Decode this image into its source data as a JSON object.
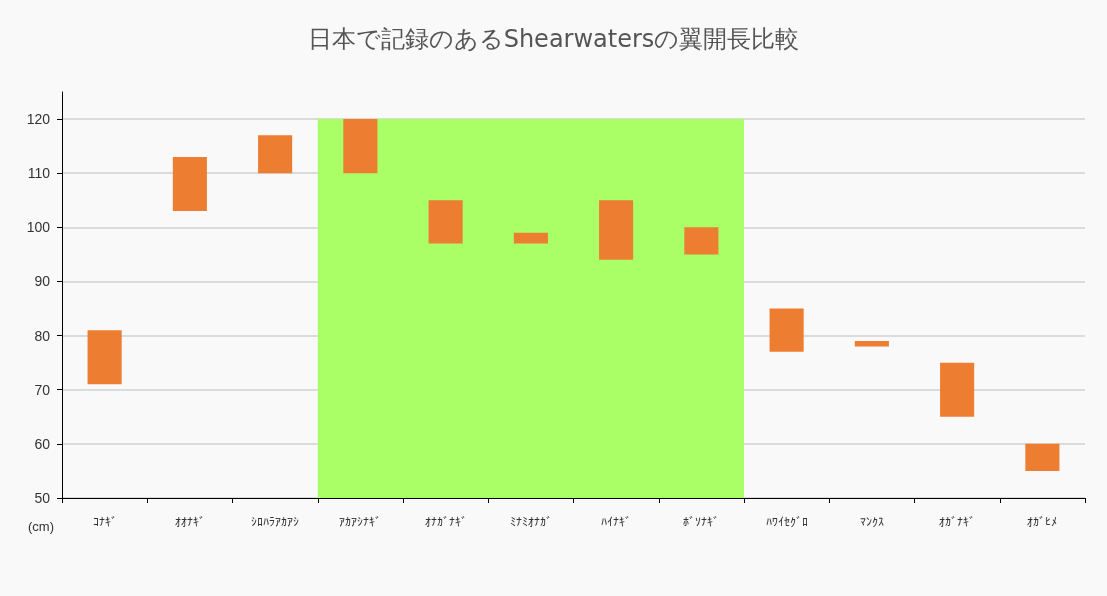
{
  "chart_data": {
    "type": "bar",
    "title": "日本で記録のあるShearwatersの翼開長比較",
    "ylabel": "(cm)",
    "categories": [
      "ｺﾅｷﾞ",
      "ｵｵﾅｷﾞ",
      "ｼﾛﾊﾗｱｶｱｼ",
      "ｱｶｱｼﾅｷﾞ",
      "ｵﾅｶﾞﾅｷﾞ",
      "ﾐﾅﾐｵﾅｶﾞ",
      "ﾊｲﾅｷﾞ",
      "ﾎﾞｿﾅｷﾞ",
      "ﾊﾜｲｾｸﾞﾛ",
      "ﾏﾝｸｽ",
      "ｵｶﾞﾅｷﾞ",
      "ｵｶﾞﾋﾒ"
    ],
    "base": [
      71,
      103,
      110,
      110,
      97,
      97,
      94,
      95,
      77,
      78,
      65,
      55
    ],
    "values": [
      10,
      10,
      7,
      10,
      8,
      2,
      11,
      5,
      8,
      1,
      10,
      5
    ],
    "color": "#ed7d31",
    "ylim": [
      50,
      125
    ],
    "yticks": [
      50,
      60,
      70,
      80,
      90,
      100,
      110,
      120
    ],
    "grid": "y",
    "bands": [
      {
        "axis": "x",
        "from": "ｱｶｱｼﾅｷﾞ",
        "to": "ﾎﾞｿﾅｷﾞ",
        "color": "#aaff66"
      }
    ]
  }
}
